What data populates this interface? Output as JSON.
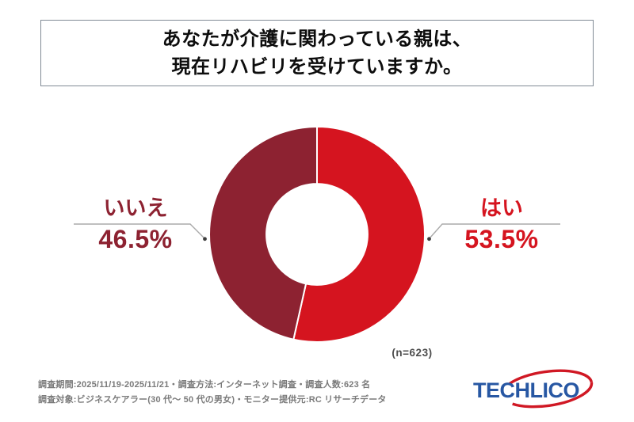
{
  "title": {
    "line1": "あなたが介護に関わっている親は、",
    "line2": "現在リハビリを受けていますか。"
  },
  "chart_data": {
    "type": "pie",
    "style": "donut",
    "categories": [
      "はい",
      "いいえ"
    ],
    "values": [
      53.5,
      46.5
    ],
    "labels": [
      "53.5%",
      "46.5%"
    ],
    "colors": [
      "#D5141F",
      "#8D2231"
    ],
    "start_angle_deg": -90,
    "direction": "clockwise",
    "inner_radius_ratio": 0.47,
    "separator_color": "#ffffff",
    "sample_note": "(n=623)",
    "legend_position": "callouts-left-right"
  },
  "callouts": {
    "right": {
      "label": "はい",
      "value": "53.5%",
      "color": "#D5141F"
    },
    "left": {
      "label": "いいえ",
      "value": "46.5%",
      "color": "#8D2231"
    }
  },
  "footnote": {
    "line1": "調査期間:2025/11/19-2025/11/21・調査方法:インターネット調査・調査人数:623 名",
    "line2": "調査対象:ビジネスケアラー(30 代〜 50 代の男女)・モニター提供元:RC リサーチデータ"
  },
  "logo": {
    "text": "TECHLICO",
    "text_color": "#2757A3",
    "ring_color": "#D01824"
  }
}
